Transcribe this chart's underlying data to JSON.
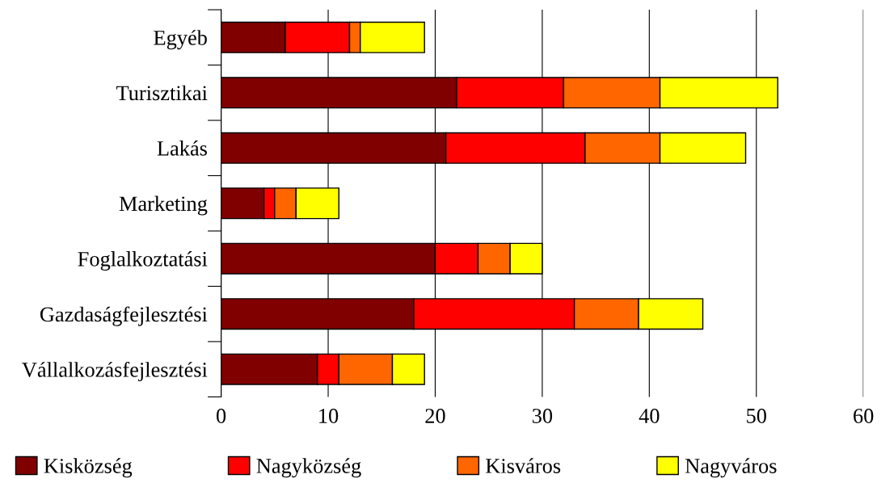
{
  "chart_data": {
    "type": "bar",
    "orientation": "horizontal",
    "stacked": true,
    "categories": [
      "Egyéb",
      "Turisztikai",
      "Lakás",
      "Marketing",
      "Foglalkoztatási",
      "Gazdaságfejlesztési",
      "Vállalkozásfejlesztési"
    ],
    "series": [
      {
        "name": "Kisközség",
        "color": "#800000",
        "values": [
          6,
          22,
          21,
          4,
          20,
          18,
          9
        ]
      },
      {
        "name": "Nagyközség",
        "color": "#ff0000",
        "values": [
          6,
          10,
          13,
          1,
          4,
          15,
          2
        ]
      },
      {
        "name": "Kisváros",
        "color": "#ff6600",
        "values": [
          1,
          9,
          7,
          2,
          3,
          6,
          5
        ]
      },
      {
        "name": "Nagyváros",
        "color": "#ffff00",
        "values": [
          6,
          11,
          8,
          4,
          3,
          6,
          3
        ]
      }
    ],
    "xlim": [
      0,
      60
    ],
    "xticks": [
      0,
      10,
      20,
      30,
      40,
      50,
      60
    ],
    "grid": "x",
    "legend": "bottom"
  }
}
